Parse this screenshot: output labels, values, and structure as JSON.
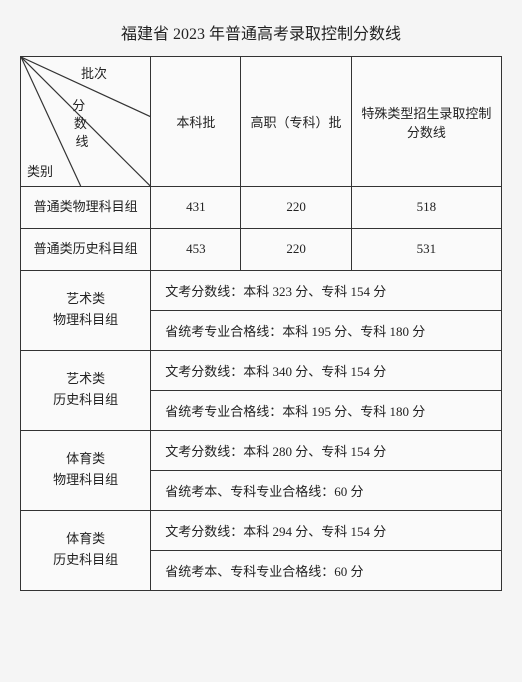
{
  "title": "福建省 2023 年普通高考录取控制分数线",
  "header": {
    "batch": "批次",
    "scoreline": "分\n数\n线",
    "category": "类别",
    "col1": "本科批",
    "col2": "高职（专科）批",
    "col3": "特殊类型招生录取控制分数线"
  },
  "rows": {
    "physics": {
      "label": "普通类物理科目组",
      "c1": "431",
      "c2": "220",
      "c3": "518"
    },
    "history": {
      "label": "普通类历史科目组",
      "c1": "453",
      "c2": "220",
      "c3": "531"
    }
  },
  "groups": [
    {
      "label": "艺术类\n物理科目组",
      "l1": "文考分数线：本科 323 分、专科 154 分",
      "l2": "省统考专业合格线：本科 195 分、专科 180 分"
    },
    {
      "label": "艺术类\n历史科目组",
      "l1": "文考分数线：本科 340 分、专科 154 分",
      "l2": "省统考专业合格线：本科 195 分、专科 180 分"
    },
    {
      "label": "体育类\n物理科目组",
      "l1": "文考分数线：本科 280 分、专科 154 分",
      "l2": "省统考本、专科专业合格线：60 分"
    },
    {
      "label": "体育类\n历史科目组",
      "l1": "文考分数线：本科 294 分、专科 154 分",
      "l2": "省统考本、专科专业合格线：60 分"
    }
  ],
  "style": {
    "border_color": "#333333",
    "background": "#fafafa",
    "font_size_title": 16,
    "font_size_body": 13
  }
}
